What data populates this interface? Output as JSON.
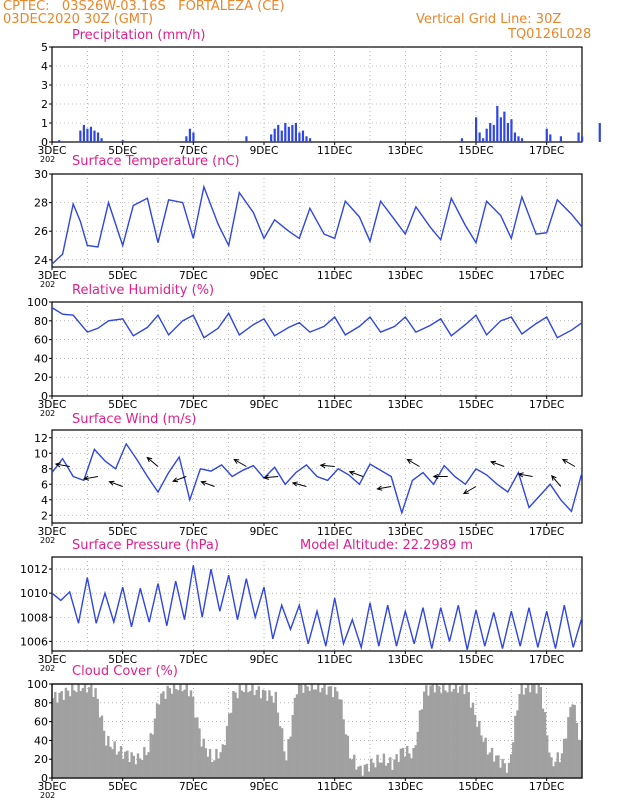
{
  "header": {
    "line1": "CPTEC:   03S26W-03.16S   FORTALEZA (CE)",
    "line2": "03DEC2020 30Z (GMT)",
    "grid_note": "Vertical Grid Line: 30Z",
    "model_code": "TQ0126L028"
  },
  "x_ticks": [
    "3DEC",
    "5DEC",
    "7DEC",
    "9DEC",
    "11DEC",
    "13DEC",
    "15DEC",
    "17DEC"
  ],
  "x_year_fragment": "202",
  "colors": {
    "line": "#2f46e0",
    "title": "#e0208a",
    "header": "#e8862a",
    "cloud": "#a0a0a0",
    "wind_arrow": "#000000"
  },
  "panels": {
    "precip": {
      "title": "Precipitation (mm/h)"
    },
    "temp": {
      "title": "Surface Temperature (nC)"
    },
    "rh": {
      "title": "Relative Humidity (%)"
    },
    "wind": {
      "title": "Surface Wind (m/s)"
    },
    "pres": {
      "title": "Surface Pressure (hPa)",
      "extra": "Model Altitude: 22.2989 m"
    },
    "cloud": {
      "title": "Cloud Cover (%)"
    }
  },
  "chart_data": [
    {
      "type": "bar",
      "title": "Precipitation (mm/h)",
      "x_unit": "days since 3DEC",
      "ylim": [
        0,
        5
      ],
      "yticks": [
        0,
        1,
        2,
        3,
        4,
        5
      ],
      "x": [
        0.2,
        0.8,
        0.9,
        1.0,
        1.1,
        1.2,
        1.3,
        1.4,
        2.0,
        3.8,
        3.9,
        4.0,
        5.5,
        6.2,
        6.3,
        6.4,
        6.5,
        6.6,
        6.7,
        6.8,
        6.9,
        7.0,
        7.1,
        7.2,
        7.3,
        11.6,
        12.0,
        12.1,
        12.2,
        12.3,
        12.4,
        12.5,
        12.6,
        12.7,
        12.8,
        12.9,
        13.0,
        13.1,
        13.2,
        13.3,
        14.0,
        14.1,
        14.4,
        14.9,
        15.0,
        15.5
      ],
      "values": [
        0.1,
        0.6,
        0.9,
        0.7,
        0.8,
        0.6,
        0.5,
        0.2,
        0.1,
        0.3,
        0.7,
        0.5,
        0.3,
        0.4,
        0.7,
        0.9,
        0.6,
        1.0,
        0.8,
        0.9,
        1.0,
        0.5,
        0.6,
        0.3,
        0.2,
        0.2,
        1.3,
        0.5,
        0.2,
        0.7,
        1.0,
        0.9,
        1.9,
        1.3,
        1.6,
        1.0,
        1.2,
        0.5,
        0.3,
        0.2,
        0.7,
        0.4,
        0.3,
        0.5,
        0.3,
        1.0
      ]
    },
    {
      "type": "line",
      "title": "Surface Temperature (nC)",
      "x_unit": "days since 3DEC",
      "ylim": [
        23.5,
        30
      ],
      "yticks": [
        24,
        26,
        28,
        30
      ],
      "x": [
        0,
        0.3,
        0.6,
        0.8,
        1.0,
        1.3,
        1.6,
        2.0,
        2.3,
        2.7,
        3.0,
        3.3,
        3.7,
        4.0,
        4.3,
        4.7,
        5.0,
        5.3,
        5.7,
        6.0,
        6.3,
        6.7,
        7.0,
        7.3,
        7.7,
        8.0,
        8.3,
        8.7,
        9.0,
        9.3,
        9.7,
        10.0,
        10.3,
        10.7,
        11.0,
        11.3,
        11.7,
        12.0,
        12.3,
        12.7,
        13.0,
        13.3,
        13.7,
        14.0,
        14.3,
        14.7,
        15.0
      ],
      "values": [
        23.7,
        24.4,
        27.9,
        26.7,
        25.0,
        24.9,
        28.0,
        25.0,
        27.8,
        28.3,
        25.2,
        28.2,
        28.0,
        25.5,
        29.1,
        26.5,
        25.0,
        28.7,
        27.3,
        25.5,
        26.8,
        26.0,
        25.5,
        27.6,
        25.8,
        25.5,
        28.1,
        27.0,
        25.3,
        28.1,
        26.8,
        25.8,
        27.7,
        26.3,
        25.4,
        28.3,
        26.4,
        25.2,
        28.1,
        27.1,
        25.5,
        28.4,
        25.8,
        25.9,
        28.2,
        27.2,
        26.3
      ]
    },
    {
      "type": "line",
      "title": "Relative Humidity (%)",
      "x_unit": "days since 3DEC",
      "ylim": [
        0,
        100
      ],
      "yticks": [
        0,
        20,
        40,
        60,
        80,
        100
      ],
      "x": [
        0,
        0.3,
        0.6,
        1.0,
        1.3,
        1.6,
        2.0,
        2.3,
        2.7,
        3.0,
        3.3,
        3.7,
        4.0,
        4.3,
        4.7,
        5.0,
        5.3,
        5.7,
        6.0,
        6.3,
        6.7,
        7.0,
        7.3,
        7.7,
        8.0,
        8.3,
        8.7,
        9.0,
        9.3,
        9.7,
        10.0,
        10.3,
        10.7,
        11.0,
        11.3,
        11.7,
        12.0,
        12.3,
        12.7,
        13.0,
        13.3,
        13.7,
        14.0,
        14.3,
        14.7,
        15.0
      ],
      "values": [
        94,
        87,
        86,
        68,
        72,
        80,
        82,
        64,
        73,
        86,
        65,
        80,
        86,
        62,
        72,
        88,
        65,
        76,
        82,
        64,
        73,
        78,
        68,
        74,
        84,
        65,
        74,
        84,
        68,
        74,
        84,
        68,
        75,
        82,
        64,
        76,
        86,
        65,
        80,
        84,
        66,
        77,
        84,
        62,
        70,
        78
      ]
    },
    {
      "type": "line",
      "title": "Surface Wind (m/s)",
      "x_unit": "days since 3DEC",
      "ylim": [
        1,
        13
      ],
      "yticks": [
        2,
        4,
        6,
        8,
        10,
        12
      ],
      "x": [
        0,
        0.3,
        0.6,
        0.9,
        1.2,
        1.5,
        1.8,
        2.1,
        2.4,
        2.7,
        3.0,
        3.3,
        3.6,
        3.9,
        4.2,
        4.5,
        4.8,
        5.1,
        5.4,
        5.7,
        6.0,
        6.3,
        6.6,
        6.9,
        7.2,
        7.5,
        7.8,
        8.1,
        8.4,
        8.7,
        9.0,
        9.3,
        9.6,
        9.9,
        10.2,
        10.5,
        10.8,
        11.1,
        11.4,
        11.7,
        12.0,
        12.3,
        12.6,
        12.9,
        13.2,
        13.5,
        13.8,
        14.1,
        14.4,
        14.7,
        15.0
      ],
      "values": [
        7.5,
        9.3,
        7.0,
        6.5,
        10.5,
        9.0,
        8.0,
        11.2,
        9.2,
        7.0,
        5.0,
        7.5,
        9.5,
        4.0,
        8.0,
        7.7,
        8.5,
        7.0,
        7.8,
        8.4,
        6.8,
        8.2,
        6.0,
        7.5,
        8.5,
        7.0,
        6.5,
        8.0,
        7.2,
        6.0,
        8.6,
        7.8,
        7.0,
        2.3,
        6.5,
        7.5,
        6.0,
        8.4,
        7.0,
        6.0,
        8.0,
        7.2,
        6.0,
        5.0,
        7.5,
        3.0,
        4.5,
        6.0,
        4.0,
        2.5,
        7.5
      ],
      "wind_arrows_x": [
        0.5,
        1.3,
        2.0,
        3.0,
        3.8,
        4.6,
        5.5,
        6.4,
        7.2,
        8.0,
        8.8,
        9.6,
        10.4,
        11.2,
        12.0,
        12.8,
        13.6,
        14.4,
        14.8
      ],
      "wind_arrows_dir_deg": [
        190,
        170,
        200,
        220,
        160,
        200,
        210,
        175,
        195,
        185,
        200,
        170,
        210,
        180,
        150,
        200,
        190,
        230,
        210
      ]
    },
    {
      "type": "line",
      "title": "Surface Pressure (hPa)",
      "x_unit": "days since 3DEC",
      "ylim": [
        1005.2,
        1013
      ],
      "yticks": [
        1006,
        1008,
        1010,
        1012
      ],
      "x": [
        0,
        0.25,
        0.5,
        0.75,
        1.0,
        1.25,
        1.5,
        1.75,
        2.0,
        2.25,
        2.5,
        2.75,
        3.0,
        3.25,
        3.5,
        3.75,
        4.0,
        4.25,
        4.5,
        4.75,
        5.0,
        5.25,
        5.5,
        5.75,
        6.0,
        6.25,
        6.5,
        6.75,
        7.0,
        7.25,
        7.5,
        7.75,
        8.0,
        8.25,
        8.5,
        8.75,
        9.0,
        9.25,
        9.5,
        9.75,
        10.0,
        10.25,
        10.5,
        10.75,
        11.0,
        11.25,
        11.5,
        11.75,
        12.0,
        12.25,
        12.5,
        12.75,
        13.0,
        13.25,
        13.5,
        13.75,
        14.0,
        14.25,
        14.5,
        14.75,
        15.0
      ],
      "values": [
        1010,
        1009.4,
        1010.1,
        1007.5,
        1011.3,
        1007.5,
        1010.0,
        1007.6,
        1010.5,
        1007.2,
        1010.4,
        1007.6,
        1010.8,
        1007.3,
        1011.0,
        1007.8,
        1012.3,
        1008.0,
        1012.0,
        1008.5,
        1011.5,
        1007.8,
        1011.2,
        1008.0,
        1010.5,
        1006.2,
        1009.0,
        1007.0,
        1009.0,
        1005.8,
        1008.5,
        1005.6,
        1009.6,
        1005.8,
        1007.8,
        1005.5,
        1009.2,
        1005.6,
        1009.0,
        1005.6,
        1008.5,
        1005.8,
        1008.8,
        1005.4,
        1008.8,
        1006.0,
        1009.0,
        1005.3,
        1008.6,
        1005.6,
        1008.4,
        1005.4,
        1008.5,
        1005.6,
        1008.8,
        1005.5,
        1008.5,
        1005.4,
        1009.0,
        1005.5,
        1008.0
      ]
    },
    {
      "type": "area",
      "title": "Cloud Cover (%)",
      "x_unit": "days since 3DEC",
      "ylim": [
        0,
        100
      ],
      "yticks": [
        0,
        20,
        40,
        60,
        80,
        100
      ],
      "x": [
        0,
        0.3,
        0.6,
        0.9,
        1.2,
        1.5,
        1.8,
        2.1,
        2.4,
        2.7,
        3.0,
        3.3,
        3.6,
        3.9,
        4.2,
        4.5,
        4.8,
        5.1,
        5.4,
        5.7,
        6.0,
        6.3,
        6.6,
        6.9,
        7.2,
        7.5,
        7.8,
        8.1,
        8.4,
        8.7,
        9.0,
        9.3,
        9.6,
        9.9,
        10.2,
        10.5,
        10.8,
        11.1,
        11.4,
        11.7,
        12.0,
        12.3,
        12.6,
        12.9,
        13.2,
        13.5,
        13.8,
        14.1,
        14.4,
        14.7,
        15.0
      ],
      "values": [
        85,
        90,
        95,
        98,
        92,
        40,
        30,
        25,
        20,
        30,
        85,
        95,
        98,
        92,
        40,
        20,
        30,
        88,
        96,
        94,
        90,
        85,
        20,
        96,
        98,
        97,
        95,
        90,
        25,
        8,
        15,
        20,
        15,
        30,
        25,
        92,
        98,
        95,
        97,
        96,
        60,
        30,
        20,
        10,
        92,
        98,
        96,
        15,
        25,
        85,
        20
      ]
    }
  ]
}
